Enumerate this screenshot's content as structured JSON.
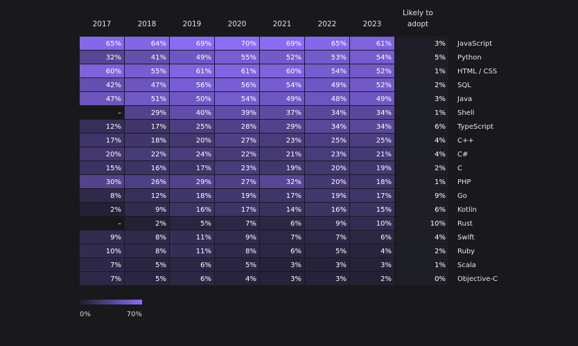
{
  "chart_data": {
    "type": "heatmap",
    "years": [
      "2017",
      "2018",
      "2019",
      "2020",
      "2021",
      "2022",
      "2023"
    ],
    "adopt_header": [
      "Likely to",
      "adopt"
    ],
    "rows": [
      {
        "language": "JavaScript",
        "values": [
          65,
          64,
          69,
          70,
          69,
          65,
          61
        ],
        "adopt": 3
      },
      {
        "language": "Python",
        "values": [
          32,
          41,
          49,
          55,
          52,
          53,
          54
        ],
        "adopt": 5
      },
      {
        "language": "HTML / CSS",
        "values": [
          60,
          55,
          61,
          61,
          60,
          54,
          52
        ],
        "adopt": 1
      },
      {
        "language": "SQL",
        "values": [
          42,
          47,
          56,
          56,
          54,
          49,
          52
        ],
        "adopt": 2
      },
      {
        "language": "Java",
        "values": [
          47,
          51,
          50,
          54,
          49,
          48,
          49
        ],
        "adopt": 3
      },
      {
        "language": "Shell",
        "values": [
          null,
          29,
          40,
          39,
          37,
          34,
          34
        ],
        "adopt": 1
      },
      {
        "language": "TypeScript",
        "values": [
          12,
          17,
          25,
          28,
          29,
          34,
          34
        ],
        "adopt": 6
      },
      {
        "language": "C++",
        "values": [
          17,
          18,
          20,
          27,
          23,
          25,
          25
        ],
        "adopt": 4
      },
      {
        "language": "C#",
        "values": [
          20,
          22,
          24,
          22,
          21,
          23,
          21
        ],
        "adopt": 4
      },
      {
        "language": "C",
        "values": [
          15,
          16,
          17,
          23,
          19,
          20,
          19
        ],
        "adopt": 2
      },
      {
        "language": "PHP",
        "values": [
          30,
          26,
          29,
          27,
          32,
          20,
          18
        ],
        "adopt": 1
      },
      {
        "language": "Go",
        "values": [
          8,
          12,
          18,
          19,
          17,
          19,
          17
        ],
        "adopt": 9
      },
      {
        "language": "Kotlin",
        "values": [
          2,
          9,
          16,
          17,
          14,
          16,
          15
        ],
        "adopt": 6
      },
      {
        "language": "Rust",
        "values": [
          null,
          2,
          5,
          7,
          6,
          9,
          10
        ],
        "adopt": 10
      },
      {
        "language": "Swift",
        "values": [
          9,
          8,
          11,
          9,
          7,
          7,
          6
        ],
        "adopt": 4
      },
      {
        "language": "Ruby",
        "values": [
          10,
          8,
          11,
          8,
          6,
          5,
          4
        ],
        "adopt": 2
      },
      {
        "language": "Scala",
        "values": [
          7,
          5,
          6,
          5,
          3,
          3,
          3
        ],
        "adopt": 1
      },
      {
        "language": "Objective-C",
        "values": [
          7,
          5,
          6,
          4,
          3,
          3,
          2
        ],
        "adopt": 0
      }
    ],
    "missing_label": "–",
    "value_suffix": "%",
    "legend": {
      "min": 0,
      "max": 70,
      "min_label": "0%",
      "max_label": "70%"
    },
    "colors": {
      "low": "#1e1d2b",
      "high": "#8b6cf7",
      "adopt_bg": "#1e1e26",
      "background": "#19191c"
    }
  }
}
